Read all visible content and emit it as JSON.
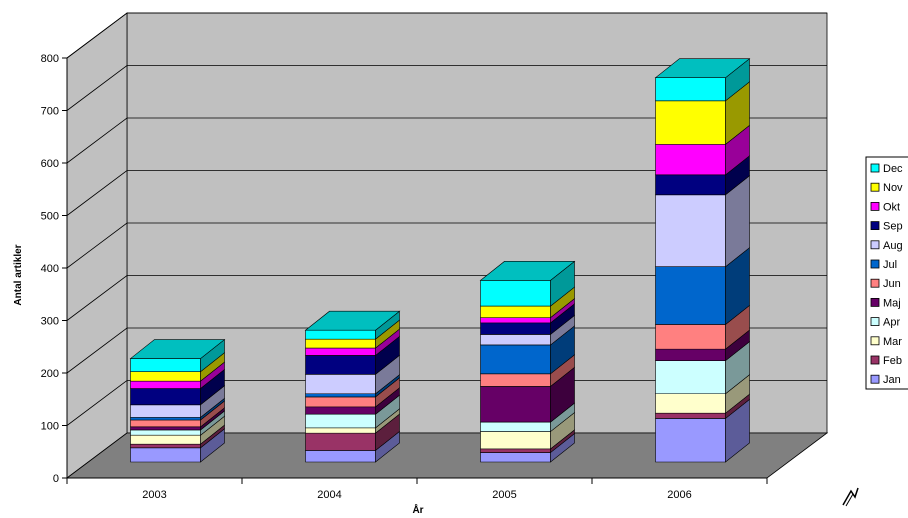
{
  "chart_data": {
    "type": "bar",
    "stacked": true,
    "three_d": true,
    "xlabel": "År",
    "ylabel": "Antal artikler",
    "ylim": [
      0,
      800
    ],
    "yticks": [
      0,
      100,
      200,
      300,
      400,
      500,
      600,
      700,
      800
    ],
    "grid": true,
    "legend_position": "right",
    "categories": [
      "2003",
      "2004",
      "2005",
      "2006"
    ],
    "series": [
      {
        "name": "Jan",
        "color": "#9999ff",
        "values": [
          27,
          22,
          18,
          83
        ]
      },
      {
        "name": "Feb",
        "color": "#993366",
        "values": [
          7,
          33,
          7,
          10
        ]
      },
      {
        "name": "Mar",
        "color": "#ffffcc",
        "values": [
          17,
          10,
          33,
          37
        ]
      },
      {
        "name": "Apr",
        "color": "#ccffff",
        "values": [
          10,
          26,
          18,
          63
        ]
      },
      {
        "name": "Maj",
        "color": "#660066",
        "values": [
          6,
          14,
          68,
          22
        ]
      },
      {
        "name": "Jun",
        "color": "#ff8080",
        "values": [
          13,
          19,
          24,
          47
        ]
      },
      {
        "name": "Jul",
        "color": "#0066cc",
        "values": [
          5,
          6,
          55,
          110
        ]
      },
      {
        "name": "Aug",
        "color": "#ccccff",
        "values": [
          24,
          37,
          20,
          137
        ]
      },
      {
        "name": "Sep",
        "color": "#000080",
        "values": [
          31,
          36,
          22,
          38
        ]
      },
      {
        "name": "Okt",
        "color": "#ff00ff",
        "values": [
          14,
          14,
          10,
          58
        ]
      },
      {
        "name": "Nov",
        "color": "#ffff00",
        "values": [
          18,
          17,
          22,
          83
        ]
      },
      {
        "name": "Dec",
        "color": "#00ffff",
        "values": [
          25,
          17,
          49,
          44
        ]
      }
    ]
  },
  "colors": {
    "wall": "#c0c0c0",
    "floor": "#808080",
    "gridline": "#000000"
  }
}
